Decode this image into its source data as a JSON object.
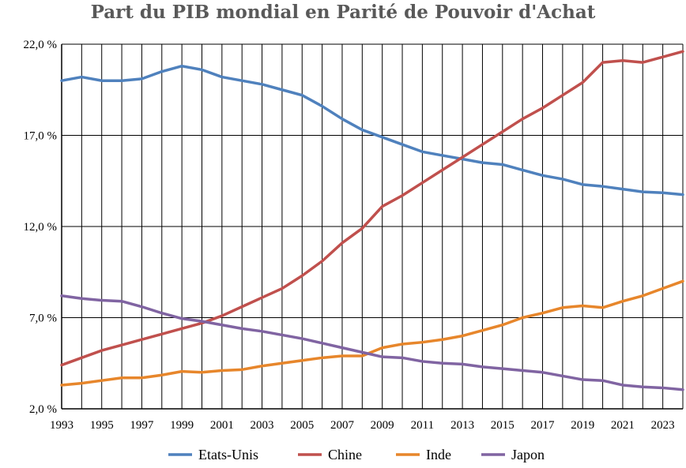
{
  "chart_data": {
    "type": "line",
    "title": "Part du PIB mondial en Parité de Pouvoir d'Achat",
    "xlabel": "",
    "ylabel": "",
    "ylim": [
      2.0,
      22.0
    ],
    "y_ticks": [
      "2,0 %",
      "7,0 %",
      "12,0 %",
      "17,0 %",
      "22,0 %"
    ],
    "y_tick_values": [
      2,
      7,
      12,
      17,
      22
    ],
    "x": [
      1993,
      1994,
      1995,
      1996,
      1997,
      1998,
      1999,
      2000,
      2001,
      2002,
      2003,
      2004,
      2005,
      2006,
      2007,
      2008,
      2009,
      2010,
      2011,
      2012,
      2013,
      2014,
      2015,
      2016,
      2017,
      2018,
      2019,
      2020,
      2021,
      2022,
      2023,
      2024
    ],
    "x_tick_labels": [
      "1993",
      "1995",
      "1997",
      "1999",
      "2001",
      "2003",
      "2005",
      "2007",
      "2009",
      "2011",
      "2013",
      "2015",
      "2017",
      "2019",
      "2021",
      "2023"
    ],
    "x_tick_values": [
      1993,
      1995,
      1997,
      1999,
      2001,
      2003,
      2005,
      2007,
      2009,
      2011,
      2013,
      2015,
      2017,
      2019,
      2021,
      2023
    ],
    "grid": true,
    "legend": "bottom",
    "series": [
      {
        "name": "Etats-Unis",
        "color": "#4F81BD",
        "values": [
          20.0,
          20.2,
          20.0,
          20.0,
          20.1,
          20.5,
          20.8,
          20.6,
          20.2,
          20.0,
          19.8,
          19.5,
          19.2,
          18.6,
          17.9,
          17.3,
          16.9,
          16.5,
          16.1,
          15.9,
          15.7,
          15.5,
          15.4,
          15.1,
          14.8,
          14.6,
          14.3,
          14.2,
          14.05,
          13.9,
          13.85,
          13.75
        ]
      },
      {
        "name": "Chine",
        "color": "#C0504D",
        "values": [
          4.4,
          4.8,
          5.2,
          5.5,
          5.8,
          6.1,
          6.4,
          6.7,
          7.1,
          7.6,
          8.1,
          8.6,
          9.3,
          10.1,
          11.1,
          11.9,
          13.1,
          13.7,
          14.4,
          15.1,
          15.8,
          16.5,
          17.2,
          17.9,
          18.5,
          19.2,
          19.9,
          21.0,
          21.1,
          21.0,
          21.3,
          21.6
        ]
      },
      {
        "name": "Inde",
        "color": "#E7862B",
        "values": [
          3.3,
          3.4,
          3.55,
          3.7,
          3.7,
          3.85,
          4.05,
          4.0,
          4.1,
          4.15,
          4.35,
          4.5,
          4.65,
          4.8,
          4.9,
          4.9,
          5.35,
          5.55,
          5.65,
          5.8,
          6.0,
          6.3,
          6.6,
          7.0,
          7.25,
          7.55,
          7.65,
          7.55,
          7.9,
          8.2,
          8.6,
          9.0
        ]
      },
      {
        "name": "Japon",
        "color": "#8064A2",
        "values": [
          8.2,
          8.05,
          7.95,
          7.9,
          7.6,
          7.25,
          6.95,
          6.8,
          6.6,
          6.4,
          6.25,
          6.05,
          5.85,
          5.6,
          5.35,
          5.1,
          4.85,
          4.8,
          4.6,
          4.5,
          4.45,
          4.3,
          4.2,
          4.1,
          4.0,
          3.8,
          3.6,
          3.55,
          3.3,
          3.2,
          3.15,
          3.05
        ]
      }
    ]
  }
}
